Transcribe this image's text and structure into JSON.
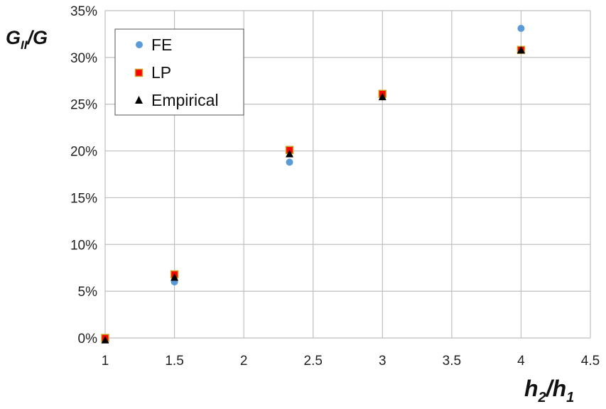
{
  "chart_data": {
    "type": "scatter",
    "xlabel": {
      "main": "h",
      "sub1": "2",
      "sep": "/h",
      "sub2": "1"
    },
    "ylabel": {
      "main": "G",
      "sub": "II",
      "rest": "/G"
    },
    "xlim": [
      1,
      4.5
    ],
    "ylim": [
      0,
      0.35
    ],
    "x_ticks": [
      "1",
      "1.5",
      "2",
      "2.5",
      "3",
      "3.5",
      "4",
      "4.5"
    ],
    "y_ticks": [
      "0%",
      "5%",
      "10%",
      "15%",
      "20%",
      "25%",
      "30%",
      "35%"
    ],
    "grid": true,
    "legend_position": "top-left",
    "series": [
      {
        "name": "FE",
        "marker": "circle",
        "color": "#5B9BD5",
        "points": [
          [
            1,
            0.0
          ],
          [
            1.5,
            0.06
          ],
          [
            2.33,
            0.188
          ],
          [
            3,
            0.258
          ],
          [
            4,
            0.331
          ]
        ]
      },
      {
        "name": "LP",
        "marker": "square",
        "color": "#FF0000",
        "edge": "#C9A227",
        "points": [
          [
            1,
            0.0
          ],
          [
            1.5,
            0.068
          ],
          [
            2.33,
            0.201
          ],
          [
            3,
            0.261
          ],
          [
            4,
            0.308
          ]
        ]
      },
      {
        "name": "Empirical",
        "marker": "triangle",
        "color": "#000000",
        "points": [
          [
            1,
            -0.002
          ],
          [
            1.5,
            0.065
          ],
          [
            2.33,
            0.197
          ],
          [
            3,
            0.258
          ],
          [
            4,
            0.308
          ]
        ]
      }
    ]
  }
}
